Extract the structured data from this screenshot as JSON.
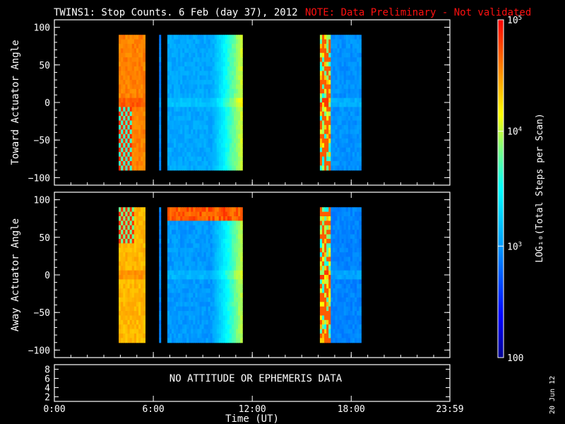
{
  "header": {
    "title": "TWINS1: Stop Counts.  6 Feb (day  37), 2012",
    "note": "NOTE: Data Preliminary - Not validated",
    "note_color": "#ff0000"
  },
  "stamp": "20 Jun 12",
  "chart_data": [
    {
      "type": "heatmap",
      "ylabel": "Toward Actuator Angle",
      "ylim": [
        -110,
        110
      ],
      "yticks": [
        100,
        50,
        0,
        -50,
        -100
      ],
      "xlim": [
        0,
        23.983
      ],
      "data_ylim": [
        -90,
        90
      ],
      "segments": [
        {
          "x0": 3.9,
          "x1": 5.5,
          "base": 0.86,
          "bottom_low": 0.95,
          "banded": true
        },
        {
          "x0": 6.35,
          "x1": 6.45,
          "base": 0.3
        },
        {
          "x0": 6.85,
          "x1": 11.4,
          "base": 0.35,
          "right_ramp": 0.68
        },
        {
          "x0": 16.1,
          "x1": 18.6,
          "base": 0.32,
          "left_mixed": true
        }
      ]
    },
    {
      "type": "heatmap",
      "ylabel": "Away Actuator Angle",
      "ylim": [
        -110,
        110
      ],
      "yticks": [
        100,
        50,
        0,
        -50,
        -100
      ],
      "xlim": [
        0,
        23.983
      ],
      "data_ylim": [
        -90,
        90
      ],
      "segments": [
        {
          "x0": 3.9,
          "x1": 5.5,
          "base": 0.8,
          "top_mixed": true
        },
        {
          "x0": 6.35,
          "x1": 6.45,
          "base": 0.3
        },
        {
          "x0": 6.85,
          "x1": 11.4,
          "base": 0.33,
          "top_band_high": 0.95,
          "right_ramp": 0.66
        },
        {
          "x0": 16.1,
          "x1": 18.6,
          "base": 0.3,
          "left_mixed": true
        }
      ]
    },
    {
      "type": "table",
      "yticks": [
        "8",
        "6",
        "4",
        "2"
      ],
      "message": "NO ATTITUDE OR EPHEMERIS DATA"
    }
  ],
  "xaxis": {
    "ticks": [
      "0:00",
      "6:00",
      "12:00",
      "18:00",
      "23:59"
    ],
    "label": "Time (UT)"
  },
  "colorbar": {
    "label": "LOG₁₀(Total Steps per Scan)",
    "ticks": [
      {
        "label": "10",
        "sup": "5",
        "frac": 1.0
      },
      {
        "label": "10",
        "sup": "4",
        "frac": 0.67
      },
      {
        "label": "10",
        "sup": "3",
        "frac": 0.33
      },
      {
        "label": "100",
        "sup": "",
        "frac": 0.0
      }
    ]
  }
}
